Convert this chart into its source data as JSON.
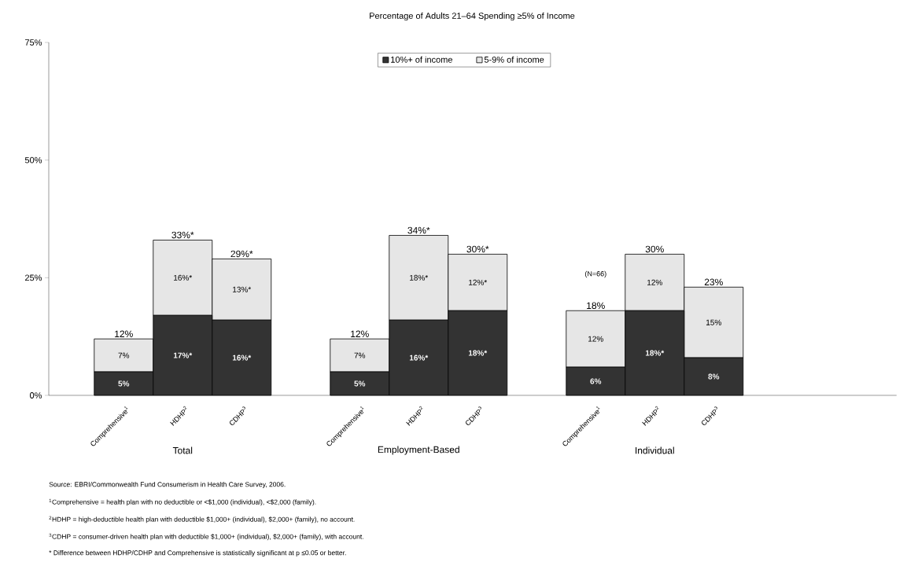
{
  "chart_data": {
    "type": "bar",
    "stacked": true,
    "title": "Percentage of Adults 21–64 Spending ≥5% of Income",
    "categories": [
      "Comprehensive$^{1}$",
      "HDHP$^{2}$",
      "CDHP$^{3}$",
      null,
      "Comprehensive$^{1}$",
      "HDHP$^{2}$",
      "CDHP$^{3}$",
      null,
      "Comprehensive$^{1}$",
      "HDHP$^{2}$",
      "CDHP$^{3}$"
    ],
    "series": [
      {
        "name": "10%+ of income",
        "color": "#333333",
        "values": [
          5,
          17,
          16,
          null,
          5,
          16,
          18,
          null,
          6,
          18,
          8
        ],
        "value_labels": [
          "5%",
          "17%*",
          "16%*",
          null,
          "5%",
          "16%*",
          "18%*",
          null,
          "6%",
          "18%*",
          "8%"
        ]
      },
      {
        "name": "5-9% of income",
        "color": "#e6e6e6",
        "values": [
          7,
          16,
          13,
          null,
          7,
          18,
          12,
          null,
          12,
          12,
          15
        ],
        "value_labels": [
          "7%",
          "16%*",
          "13%*",
          null,
          "7%",
          "18%*",
          "12%*",
          null,
          "12%",
          "12%",
          "15%"
        ]
      }
    ],
    "totals": [
      "12%",
      "33%*",
      "29%*",
      null,
      "12%",
      "34%*",
      "30%*",
      null,
      "18%",
      "30%",
      "23%"
    ],
    "ylim": [
      0,
      75
    ],
    "yticks": [
      {
        "value": 0,
        "label": "0%"
      },
      {
        "value": 25,
        "label": "25%"
      },
      {
        "value": 50,
        "label": "50%"
      },
      {
        "value": 75,
        "label": "75%"
      }
    ],
    "legend": "top",
    "annotations": [
      "Total",
      "Employment-Based",
      "Individual",
      "(N=66)",
      "Source: EBRI/Commonwealth Fund Consumerism in Health Care Survey, 2006.",
      "$^{1}$Comprehensive = health plan with no deductible or <$1,000 (individual), <$2,000 (family).",
      "$^{2}$HDHP = high-deductible health plan with deductible $1,000+ (individual), $2,000+ (family), no account.",
      "$^{3}$CDHP = consumer-driven health plan with deductible $1,000+ (individual), $2,000+ (family), with account.",
      "* Difference between HDHP/CDHP and Comprehensive is statistically significant at p ≤0.05 or better."
    ]
  }
}
